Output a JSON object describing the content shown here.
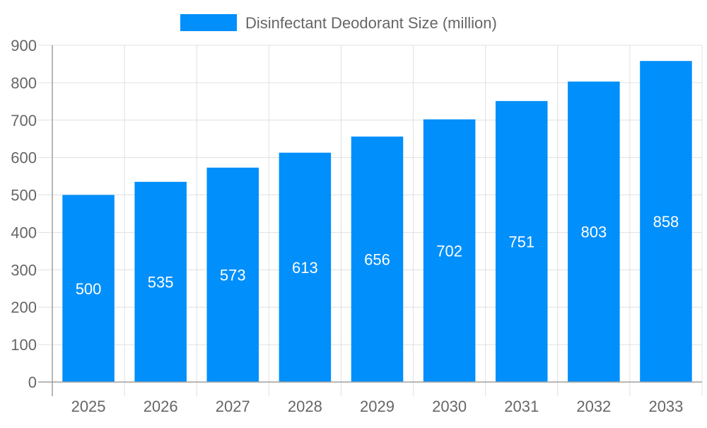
{
  "chart_data": {
    "type": "bar",
    "title": "",
    "xlabel": "",
    "ylabel": "",
    "categories": [
      "2025",
      "2026",
      "2027",
      "2028",
      "2029",
      "2030",
      "2031",
      "2032",
      "2033"
    ],
    "series": [
      {
        "name": "Disinfectant Deodorant Size (million)",
        "values": [
          500,
          535,
          573,
          613,
          656,
          702,
          751,
          803,
          858
        ],
        "color": "#008ffb"
      }
    ],
    "ylim": [
      0,
      900
    ],
    "yticks": [
      0,
      100,
      200,
      300,
      400,
      500,
      600,
      700,
      800,
      900
    ],
    "grid": true,
    "legend": "top-center",
    "data_labels": true
  }
}
